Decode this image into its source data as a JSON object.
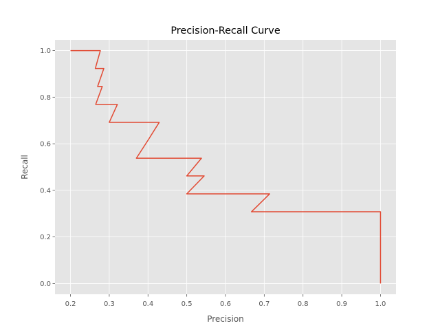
{
  "chart_data": {
    "type": "line",
    "title": "Precision-Recall Curve",
    "xlabel": "Precision",
    "ylabel": "Recall",
    "xlim": [
      0.16,
      1.04
    ],
    "ylim": [
      -0.046,
      1.046
    ],
    "xticks": [
      "0.2",
      "0.3",
      "0.4",
      "0.5",
      "0.6",
      "0.7",
      "0.8",
      "0.9",
      "1.0"
    ],
    "yticks": [
      "0.0",
      "0.2",
      "0.4",
      "0.6",
      "0.8",
      "1.0"
    ],
    "grid": true,
    "colors": {
      "background": "#e5e5e5",
      "grid": "#ffffff",
      "line": "#e24a33"
    },
    "series": [
      {
        "x": [
          0.2,
          0.277,
          0.264,
          0.286,
          0.27,
          0.282,
          0.265,
          0.321,
          0.3,
          0.429,
          0.4,
          0.37,
          0.538,
          0.5,
          0.545,
          0.5,
          0.714,
          0.667,
          1.0,
          1.0
        ],
        "y": [
          1.0,
          1.0,
          0.923,
          0.923,
          0.846,
          0.846,
          0.769,
          0.769,
          0.692,
          0.692,
          0.615,
          0.538,
          0.538,
          0.462,
          0.462,
          0.385,
          0.385,
          0.308,
          0.308,
          0.0
        ]
      }
    ]
  }
}
